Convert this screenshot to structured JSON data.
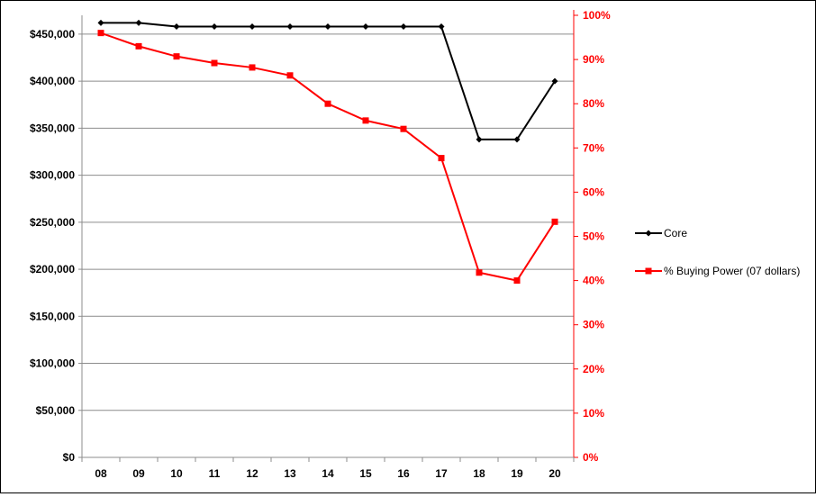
{
  "chart_data": {
    "type": "line",
    "categories": [
      "08",
      "09",
      "10",
      "11",
      "12",
      "13",
      "14",
      "15",
      "16",
      "17",
      "18",
      "19",
      "20"
    ],
    "series": [
      {
        "name": "Core",
        "axis": "left",
        "color": "#000000",
        "marker": "diamond",
        "values": [
          462000,
          462000,
          458000,
          458000,
          458000,
          458000,
          458000,
          458000,
          458000,
          458000,
          338000,
          338000,
          400000
        ]
      },
      {
        "name": "% Buying Power (07 dollars)",
        "axis": "right",
        "color": "#ff0000",
        "marker": "square",
        "values": [
          0.96,
          0.93,
          0.907,
          0.892,
          0.882,
          0.864,
          0.8,
          0.762,
          0.743,
          0.677,
          0.418,
          0.4,
          0.533
        ]
      }
    ],
    "y_left": {
      "range": [
        0,
        470000
      ],
      "ticks": [
        0,
        50000,
        100000,
        150000,
        200000,
        250000,
        300000,
        350000,
        400000,
        450000
      ],
      "tick_labels": [
        "$0",
        "$50,000",
        "$100,000",
        "$150,000",
        "$200,000",
        "$250,000",
        "$300,000",
        "$350,000",
        "$400,000",
        "$450,000"
      ]
    },
    "y_right": {
      "range": [
        0,
        1.0
      ],
      "ticks": [
        0,
        0.1,
        0.2,
        0.3,
        0.4,
        0.5,
        0.6,
        0.7,
        0.8,
        0.9,
        1.0
      ],
      "tick_labels": [
        "0%",
        "10%",
        "20%",
        "30%",
        "40%",
        "50%",
        "60%",
        "70%",
        "80%",
        "90%",
        "100%"
      ],
      "color": "#ff0000"
    },
    "grid": true,
    "legend_position": "right"
  }
}
